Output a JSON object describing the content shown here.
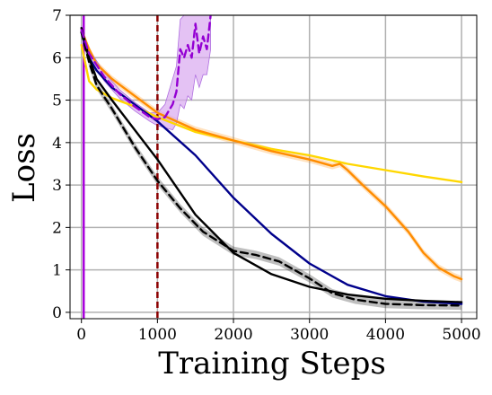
{
  "chart_data": {
    "type": "line",
    "title": "",
    "xlabel": "Training Steps",
    "ylabel": "Loss",
    "xlim": [
      -150,
      5200
    ],
    "ylim": [
      -0.15,
      7.0
    ],
    "grid": true,
    "x_ticks": [
      0,
      1000,
      2000,
      3000,
      4000,
      5000
    ],
    "y_ticks": [
      0,
      1,
      2,
      3,
      4,
      5,
      6,
      7
    ],
    "x_tick_labels": [
      "0",
      "1000",
      "2000",
      "3000",
      "4000",
      "5000"
    ],
    "y_tick_labels": [
      "0",
      "1",
      "2",
      "3",
      "4",
      "5",
      "6",
      "7"
    ],
    "vertical_lines": [
      {
        "x": 30,
        "color": "#aa00dd",
        "style": "solid"
      },
      {
        "x": 1000,
        "color": "#8b0000",
        "style": "dashed"
      }
    ],
    "series": [
      {
        "color": "#ffd700",
        "style": "solid",
        "x": [
          0,
          100,
          200,
          400,
          700,
          1000,
          1500,
          2000,
          2500,
          3000,
          3500,
          4000,
          4500,
          5000
        ],
        "y": [
          6.3,
          5.45,
          5.25,
          5.05,
          4.85,
          4.6,
          4.25,
          4.05,
          3.85,
          3.7,
          3.5,
          3.35,
          3.2,
          3.07
        ]
      },
      {
        "color": "#ff8c00",
        "style": "solid",
        "band": 0.08,
        "x": [
          0,
          100,
          200,
          400,
          700,
          1000,
          1500,
          2000,
          2500,
          3000,
          3300,
          3400,
          3500,
          3700,
          4000,
          4300,
          4500,
          4700,
          4900,
          5000
        ],
        "y": [
          6.65,
          6.2,
          5.85,
          5.5,
          5.1,
          4.7,
          4.3,
          4.05,
          3.8,
          3.6,
          3.45,
          3.5,
          3.35,
          3.0,
          2.5,
          1.9,
          1.4,
          1.05,
          0.85,
          0.78
        ]
      },
      {
        "color": "#00008b",
        "style": "solid",
        "x": [
          0,
          100,
          200,
          400,
          700,
          1000,
          1500,
          2000,
          2500,
          3000,
          3500,
          4000,
          4500,
          5000
        ],
        "y": [
          6.6,
          6.0,
          5.7,
          5.3,
          4.9,
          4.5,
          3.7,
          2.7,
          1.85,
          1.15,
          0.65,
          0.38,
          0.25,
          0.2
        ]
      },
      {
        "color": "#000000",
        "style": "solid",
        "x": [
          0,
          100,
          200,
          400,
          700,
          1000,
          1500,
          2000,
          2500,
          3000,
          3500,
          4000,
          4500,
          5000
        ],
        "y": [
          6.7,
          6.0,
          5.5,
          5.0,
          4.3,
          3.6,
          2.3,
          1.4,
          0.9,
          0.6,
          0.42,
          0.32,
          0.27,
          0.24
        ]
      },
      {
        "color": "#000000",
        "style": "dashed",
        "band": 0.1,
        "x": [
          0,
          100,
          200,
          400,
          700,
          1000,
          1300,
          1600,
          2000,
          2300,
          2600,
          3000,
          3300,
          3600,
          4000,
          4500,
          5000
        ],
        "y": [
          6.6,
          5.9,
          5.35,
          4.8,
          3.9,
          3.1,
          2.45,
          1.9,
          1.45,
          1.35,
          1.2,
          0.8,
          0.45,
          0.3,
          0.2,
          0.17,
          0.16
        ]
      },
      {
        "color": "#9400d3",
        "style": "dashed",
        "band_fill": "#d8a8f0",
        "x": [
          0,
          100,
          300,
          500,
          700,
          900,
          1000,
          1100,
          1200,
          1250,
          1300,
          1350,
          1400,
          1450,
          1500,
          1550,
          1600,
          1650,
          1700
        ],
        "y": [
          6.65,
          6.1,
          5.55,
          5.15,
          4.85,
          4.6,
          4.55,
          4.6,
          4.9,
          5.2,
          6.2,
          6.0,
          6.3,
          6.0,
          6.8,
          6.1,
          6.5,
          6.2,
          7.0
        ],
        "upper": [
          6.75,
          6.2,
          5.65,
          5.25,
          4.95,
          4.7,
          4.7,
          4.9,
          5.5,
          5.8,
          6.9,
          7.0,
          7.0,
          7.0,
          7.0,
          7.0,
          7.0,
          7.0,
          7.0
        ],
        "lower": [
          6.55,
          6.0,
          5.45,
          5.05,
          4.75,
          4.5,
          4.4,
          4.35,
          4.3,
          4.45,
          4.9,
          4.8,
          5.1,
          5.0,
          5.6,
          5.3,
          5.6,
          5.6,
          6.2
        ]
      }
    ]
  }
}
